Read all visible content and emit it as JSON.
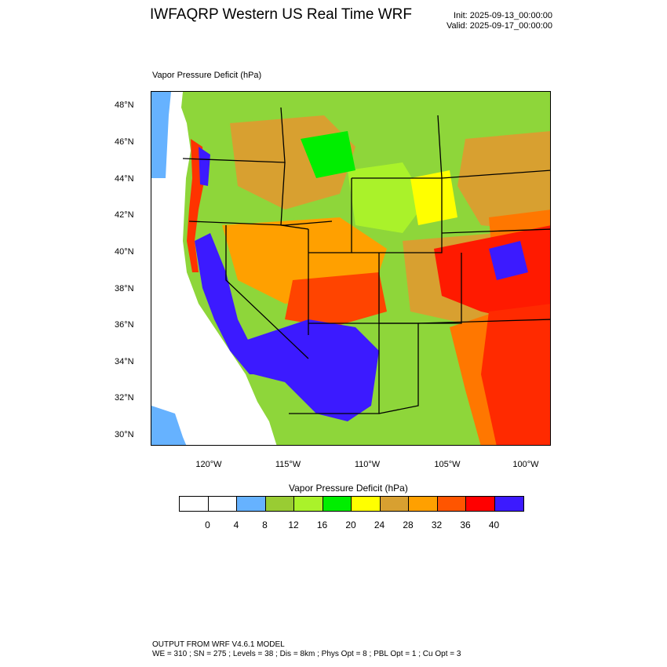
{
  "header": {
    "title": "IWFAQRP Western US Real Time WRF",
    "init": "Init: 2025-09-13_00:00:00",
    "valid": "Valid: 2025-09-17_00:00:00"
  },
  "map": {
    "label": "Vapor Pressure Deficit   (hPa)",
    "lat_ticks": [
      "48°N",
      "46°N",
      "44°N",
      "42°N",
      "40°N",
      "38°N",
      "36°N",
      "34°N",
      "32°N",
      "30°N"
    ],
    "lon_ticks": [
      "120°W",
      "115°W",
      "110°W",
      "105°W",
      "100°W"
    ]
  },
  "colorbar": {
    "title": "Vapor Pressure Deficit  (hPa)",
    "colors": [
      "#ffffff",
      "#ffffff",
      "#66b2ff",
      "#99cc33",
      "#aaf22a",
      "#00ee00",
      "#ffff00",
      "#d8a030",
      "#ffa000",
      "#ff5500",
      "#ff0000",
      "#3c1aff"
    ],
    "labels": [
      "0",
      "4",
      "8",
      "12",
      "16",
      "20",
      "24",
      "28",
      "32",
      "36",
      "40"
    ]
  },
  "footer": {
    "line1": "OUTPUT FROM WRF V4.6.1 MODEL",
    "line2": "WE = 310 ; SN = 275 ; Levels = 38 ; Dis = 8km ; Phys Opt = 8 ; PBL Opt = 1 ; Cu Opt = 3"
  }
}
